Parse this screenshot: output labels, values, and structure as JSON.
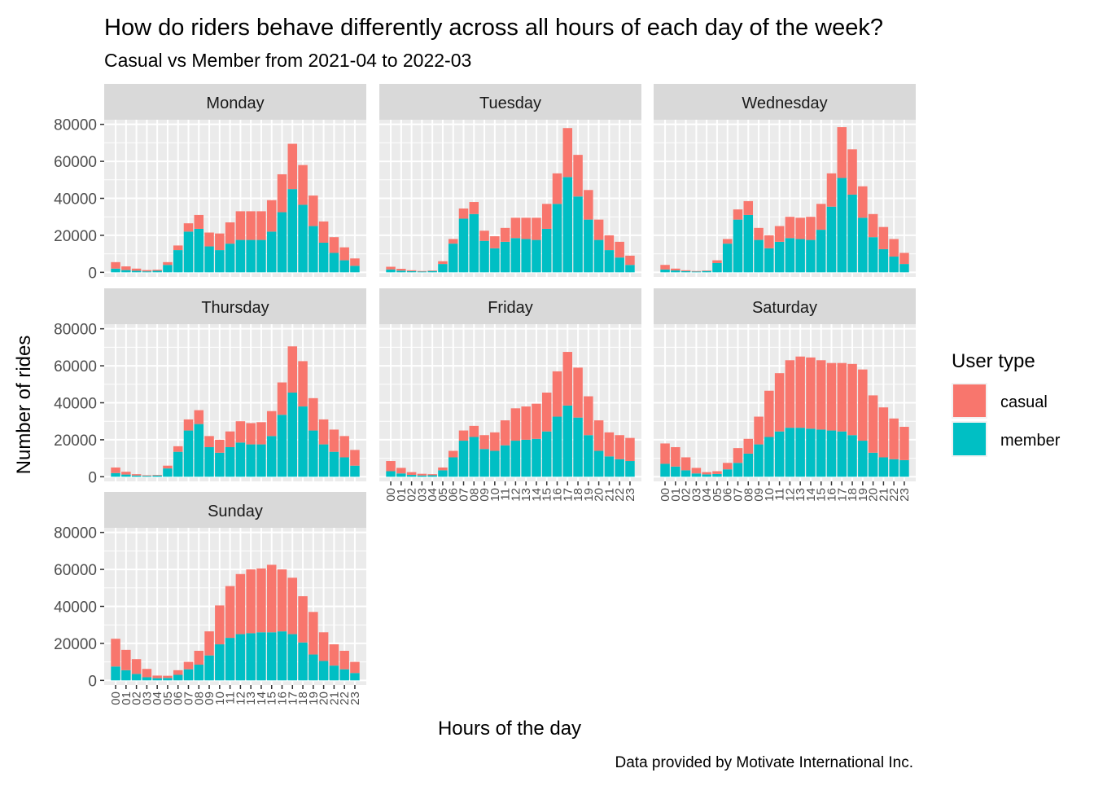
{
  "title": "How do riders behave differently across all hours of each day of the week?",
  "subtitle": "Casual vs Member from 2021-04 to 2022-03",
  "caption": "Data provided by Motivate International Inc.",
  "colors": {
    "casual": "#F8766D",
    "member": "#00BFC4",
    "panel_bg": "#EBEBEB",
    "strip_bg": "#D9D9D9",
    "grid": "#FFFFFF"
  },
  "chart_data": {
    "type": "bar",
    "stacked": true,
    "xlabel": "Hours of the day",
    "ylabel": "Number of rides",
    "ylim": [
      0,
      80000
    ],
    "yticks": [
      0,
      20000,
      40000,
      60000,
      80000
    ],
    "ytick_labels": [
      "0",
      "20000",
      "40000",
      "60000",
      "80000"
    ],
    "hours": [
      "00",
      "01",
      "02",
      "03",
      "04",
      "05",
      "06",
      "07",
      "08",
      "09",
      "10",
      "11",
      "12",
      "13",
      "14",
      "15",
      "16",
      "17",
      "18",
      "19",
      "20",
      "21",
      "22",
      "23"
    ],
    "legend": {
      "title": "User type",
      "entries": [
        "casual",
        "member"
      ],
      "position": "right"
    },
    "panels": [
      {
        "day": "Monday",
        "member": [
          2000,
          1200,
          800,
          500,
          800,
          4000,
          12000,
          22000,
          23500,
          14000,
          12000,
          15500,
          17500,
          17500,
          17500,
          22000,
          32500,
          45000,
          36500,
          25000,
          16000,
          10500,
          6500,
          3500
        ],
        "casual": [
          3500,
          2000,
          1200,
          700,
          600,
          1500,
          2500,
          4500,
          7500,
          7500,
          9000,
          11500,
          15500,
          15500,
          15500,
          17000,
          20500,
          24500,
          21500,
          16500,
          11500,
          8500,
          7000,
          4000
        ]
      },
      {
        "day": "Tuesday",
        "member": [
          1500,
          900,
          600,
          400,
          700,
          4500,
          15500,
          29000,
          31500,
          17000,
          13000,
          16500,
          18500,
          18000,
          17500,
          23500,
          37000,
          51500,
          41000,
          28500,
          17500,
          12000,
          8000,
          4000
        ],
        "casual": [
          1500,
          1000,
          500,
          300,
          300,
          1500,
          2500,
          5500,
          6500,
          5500,
          6500,
          7500,
          11000,
          11500,
          12000,
          13500,
          16500,
          26500,
          22500,
          16000,
          11000,
          8000,
          8500,
          5000
        ]
      },
      {
        "day": "Wednesday",
        "member": [
          1500,
          1000,
          600,
          400,
          700,
          5000,
          15500,
          28500,
          31000,
          17500,
          13000,
          16500,
          18500,
          18000,
          17500,
          23000,
          35500,
          51000,
          42000,
          29500,
          19000,
          12500,
          8500,
          4500
        ],
        "casual": [
          2500,
          1000,
          500,
          300,
          300,
          1500,
          2500,
          5500,
          7500,
          6500,
          7000,
          8500,
          11500,
          11500,
          12500,
          14000,
          18000,
          27500,
          24500,
          17000,
          12500,
          12000,
          9500,
          6000
        ]
      },
      {
        "day": "Thursday",
        "member": [
          2000,
          1200,
          700,
          500,
          700,
          4500,
          13500,
          25000,
          28500,
          16000,
          13000,
          16000,
          18500,
          17500,
          17500,
          22000,
          33500,
          45500,
          38000,
          25000,
          17500,
          13500,
          10500,
          6000
        ],
        "casual": [
          3000,
          1500,
          700,
          300,
          300,
          1500,
          3000,
          6000,
          7500,
          6000,
          7000,
          8500,
          11500,
          11500,
          12000,
          13500,
          17500,
          25000,
          24500,
          17500,
          13500,
          12000,
          11500,
          8500
        ]
      },
      {
        "day": "Friday",
        "member": [
          3000,
          1800,
          1000,
          700,
          800,
          3500,
          10500,
          19500,
          21500,
          15000,
          14000,
          17000,
          19500,
          20000,
          20500,
          24500,
          32500,
          38500,
          32000,
          22500,
          14000,
          11000,
          9500,
          8500
        ],
        "casual": [
          5500,
          3000,
          1500,
          900,
          600,
          1500,
          3500,
          5500,
          6000,
          7500,
          10000,
          13500,
          17500,
          18000,
          19000,
          21000,
          24500,
          29000,
          27000,
          21000,
          16500,
          13000,
          13000,
          12500
        ]
      },
      {
        "day": "Saturday",
        "member": [
          7000,
          5500,
          3500,
          1800,
          1300,
          1500,
          4000,
          7500,
          12500,
          17500,
          21500,
          24500,
          26500,
          26500,
          26000,
          25500,
          25000,
          24500,
          22500,
          19500,
          13000,
          10500,
          9500,
          9000
        ],
        "casual": [
          11000,
          10500,
          7000,
          3000,
          1200,
          1500,
          3500,
          8000,
          8000,
          15000,
          25000,
          31500,
          36500,
          38500,
          38500,
          37500,
          36500,
          37000,
          38500,
          38500,
          31000,
          27000,
          22000,
          18000
        ]
      },
      {
        "day": "Sunday",
        "member": [
          7500,
          5500,
          3500,
          1700,
          1200,
          1300,
          3000,
          6000,
          8500,
          13500,
          19500,
          23000,
          25000,
          25500,
          26000,
          26000,
          26500,
          25000,
          20500,
          14000,
          10500,
          8000,
          6000,
          4000
        ],
        "casual": [
          15000,
          11000,
          8000,
          4500,
          1400,
          1200,
          2500,
          4000,
          7500,
          13000,
          21000,
          28000,
          32500,
          34500,
          34500,
          36500,
          33500,
          30500,
          25000,
          23000,
          15500,
          11500,
          10000,
          6000
        ]
      }
    ]
  }
}
